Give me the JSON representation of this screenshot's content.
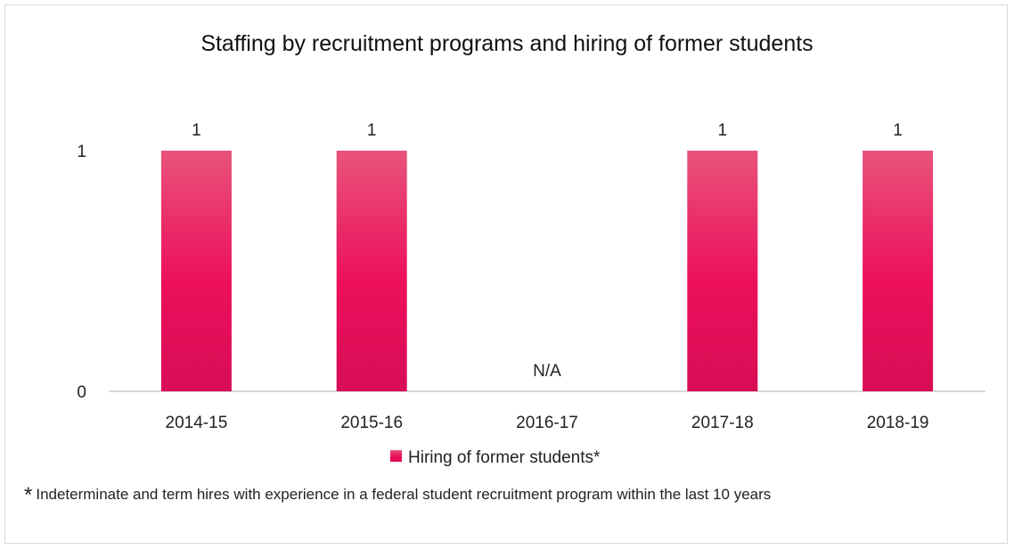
{
  "chart_data": {
    "type": "bar",
    "title": "Staffing by recruitment programs and hiring of former students",
    "categories": [
      "2014-15",
      "2015-16",
      "2016-17",
      "2017-18",
      "2018-19"
    ],
    "series": [
      {
        "name": "Hiring of former students*",
        "values": [
          1,
          1,
          null,
          1,
          1
        ],
        "data_labels": [
          "1",
          "1",
          "N/A",
          "1",
          "1"
        ]
      }
    ],
    "yticks": [
      0,
      1
    ],
    "ylim": [
      0,
      1
    ],
    "grid": false,
    "legend": "bottom",
    "colors": {
      "bar_top": "#e8537a",
      "bar_mid": "#ec0f5c",
      "bar_bottom": "#d80d55",
      "axis": "#d9d9d9"
    }
  },
  "footnote": {
    "marker": "*",
    "text": "Indeterminate and term hires with experience in a federal student recruitment program within the last 10 years"
  }
}
